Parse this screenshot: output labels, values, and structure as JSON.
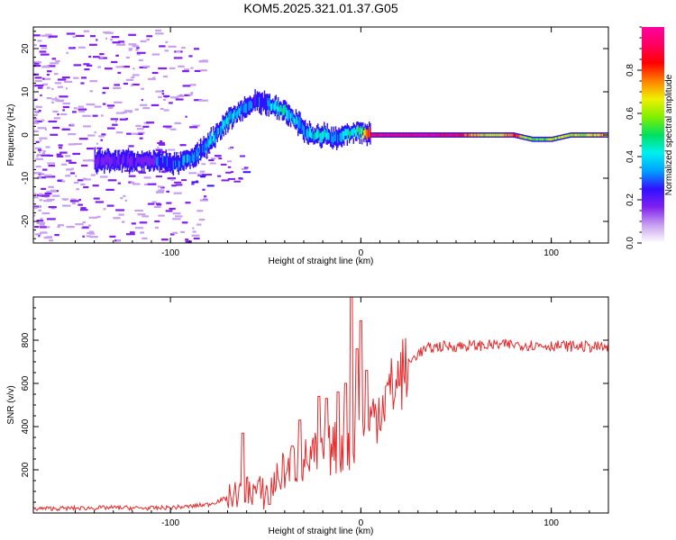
{
  "title": "KOM5.2025.321.01.37.G05",
  "chart_data": [
    {
      "type": "heatmap",
      "name": "spectrogram",
      "xlabel": "Height of straight line (km)",
      "ylabel": "Frequency (Hz)",
      "xlim": [
        -172,
        130
      ],
      "ylim": [
        -25,
        25
      ],
      "xticks": [
        -100,
        0,
        100
      ],
      "xtick_labels": [
        "-100",
        "0",
        "100"
      ],
      "yticks": [
        -20,
        -10,
        0,
        10,
        20
      ],
      "ytick_labels": [
        "-20",
        "-10",
        "0",
        "10",
        "20"
      ],
      "colorbar": {
        "label": "Normalized spectral amplitude",
        "range": [
          0,
          1
        ],
        "ticks": [
          0.0,
          0.2,
          0.4,
          0.6,
          0.8
        ],
        "tick_labels": [
          "0.0",
          "0.2",
          "0.4",
          "0.6",
          "0.8"
        ],
        "colors": [
          "#ffffff",
          "#c8a0f0",
          "#8020f0",
          "#3010ff",
          "#00a0ff",
          "#00f0f0",
          "#00e060",
          "#80f000",
          "#f0f000",
          "#ff8000",
          "#ff0000",
          "#ff0060",
          "#ff00a0"
        ]
      },
      "ridge": {
        "x": [
          -105,
          -98,
          -92,
          -85,
          -80,
          -75,
          -70,
          -66,
          -62,
          -58,
          -54,
          -50,
          -46,
          -42,
          -38,
          -34,
          -30,
          -26,
          -22,
          -18,
          -14,
          -10,
          -6,
          -2,
          0,
          5,
          10,
          20,
          30,
          40,
          50,
          60,
          70,
          80,
          90,
          100,
          110,
          120,
          130
        ],
        "y": [
          -6,
          -6.5,
          -6,
          -4,
          -2,
          1,
          3.5,
          5,
          6,
          7,
          8,
          7.5,
          6.5,
          6,
          5,
          3,
          1,
          0,
          0,
          0,
          -1,
          0,
          0.5,
          1,
          1,
          0,
          0,
          0,
          0,
          0,
          0,
          0,
          0,
          0,
          -1,
          -1,
          0,
          0,
          0
        ],
        "amplitude": [
          0.3,
          0.3,
          0.35,
          0.3,
          0.35,
          0.35,
          0.4,
          0.35,
          0.35,
          0.3,
          0.25,
          0.3,
          0.4,
          0.45,
          0.4,
          0.35,
          0.35,
          0.4,
          0.45,
          0.4,
          0.3,
          0.35,
          0.45,
          0.5,
          0.5,
          0.9,
          0.95,
          0.95,
          0.95,
          0.95,
          0.9,
          0.7,
          0.65,
          0.8,
          0.5,
          0.6,
          0.6,
          0.65,
          0.7
        ]
      }
    },
    {
      "type": "line",
      "name": "snr",
      "xlabel": "Height of straight line (km)",
      "ylabel": "SNR (v/v)",
      "xlim": [
        -172,
        130
      ],
      "ylim": [
        0,
        1000
      ],
      "xticks": [
        -100,
        0,
        100
      ],
      "xtick_labels": [
        "-100",
        "0",
        "100"
      ],
      "yticks": [
        200,
        400,
        600,
        800
      ],
      "ytick_labels": [
        "200",
        "400",
        "600",
        "800"
      ],
      "color": "#e8282a",
      "envelope": {
        "x": [
          -172,
          -150,
          -130,
          -110,
          -100,
          -90,
          -80,
          -70,
          -60,
          -50,
          -40,
          -30,
          -20,
          -10,
          -5,
          0,
          5,
          10,
          15,
          20,
          25,
          30,
          35,
          40,
          60,
          80,
          100,
          120,
          130
        ],
        "y": [
          20,
          22,
          25,
          22,
          25,
          30,
          40,
          70,
          110,
          90,
          200,
          240,
          280,
          310,
          330,
          380,
          420,
          500,
          560,
          620,
          690,
          740,
          760,
          770,
          775,
          780,
          775,
          770,
          765
        ]
      },
      "spikes": [
        {
          "x": -62,
          "y": 370
        },
        {
          "x": -48,
          "y": 40
        },
        {
          "x": -36,
          "y": 310
        },
        {
          "x": -32,
          "y": 430
        },
        {
          "x": -22,
          "y": 540
        },
        {
          "x": -18,
          "y": 530
        },
        {
          "x": -12,
          "y": 560
        },
        {
          "x": -8,
          "y": 600
        },
        {
          "x": -5,
          "y": 1000
        },
        {
          "x": -2,
          "y": 760
        },
        {
          "x": 0,
          "y": 890
        },
        {
          "x": 3,
          "y": 660
        }
      ]
    }
  ]
}
